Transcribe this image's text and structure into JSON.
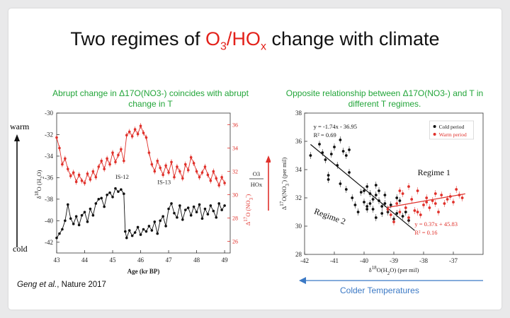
{
  "slide_title": {
    "part1": "Two regimes of ",
    "ratio_num": "O",
    "ratio_num_sub": "3",
    "slash": "/",
    "ratio_den": "HO",
    "ratio_den_sub": "x",
    "part2": " change with climate"
  },
  "left_caption": "Abrupt change in Δ17O(NO3-) coincides with abrupt change in T",
  "right_caption": "Opposite relationship between Δ17O(NO3-) and T in different T regimes.",
  "citation_author": "Geng et al.",
  "citation_rest": ", Nature 2017",
  "colder_label": "Colder Temperatures",
  "chart_data": [
    {
      "type": "line",
      "xlabel": "Age (kr BP)",
      "ylabel_left": "δ18O (H2O)",
      "ylabel_right": "Δ17O (NO3-)",
      "xlim": [
        43,
        49.2
      ],
      "x_ticks": [
        43,
        44,
        45,
        46,
        47,
        48,
        49
      ],
      "ylim_left": [
        -43,
        -30
      ],
      "y_ticks_left": [
        -30,
        -32,
        -34,
        -36,
        -38,
        -40,
        -42
      ],
      "ylim_right": [
        25,
        37
      ],
      "y_ticks_right": [
        26,
        28,
        30,
        32,
        34,
        36
      ],
      "annotations": [
        "IS-12",
        "IS-13"
      ],
      "side_labels": {
        "warm": "warm",
        "cold": "cold",
        "ratio_num": "O3",
        "ratio_den": "HOx"
      },
      "series": [
        {
          "name": "δ18O(H2O)",
          "axis": "left",
          "color": "#111111",
          "x": [
            43.0,
            43.1,
            43.2,
            43.3,
            43.4,
            43.5,
            43.6,
            43.7,
            43.8,
            43.9,
            44.0,
            44.1,
            44.2,
            44.3,
            44.4,
            44.5,
            44.6,
            44.7,
            44.8,
            44.9,
            45.0,
            45.1,
            45.2,
            45.3,
            45.4,
            45.45,
            45.5,
            45.6,
            45.7,
            45.8,
            45.9,
            46.0,
            46.1,
            46.2,
            46.3,
            46.4,
            46.5,
            46.6,
            46.7,
            46.8,
            46.9,
            47.0,
            47.1,
            47.2,
            47.3,
            47.4,
            47.5,
            47.6,
            47.7,
            47.8,
            47.9,
            48.0,
            48.1,
            48.2,
            48.3,
            48.4,
            48.5,
            48.6,
            48.7,
            48.8,
            48.9,
            49.0
          ],
          "y": [
            -41.6,
            -41.2,
            -40.8,
            -40.0,
            -38.5,
            -39.8,
            -40.3,
            -39.6,
            -40.4,
            -39.5,
            -39.2,
            -40.1,
            -38.9,
            -39.5,
            -38.4,
            -38.0,
            -37.9,
            -38.7,
            -37.6,
            -37.4,
            -37.8,
            -37.0,
            -37.3,
            -37.1,
            -37.5,
            -41.0,
            -41.6,
            -40.9,
            -41.4,
            -41.1,
            -40.6,
            -41.3,
            -40.8,
            -41.0,
            -40.5,
            -40.9,
            -40.1,
            -41.2,
            -40.0,
            -39.6,
            -40.5,
            -38.9,
            -38.4,
            -39.3,
            -39.7,
            -38.6,
            -39.9,
            -39.0,
            -38.8,
            -39.5,
            -38.7,
            -39.2,
            -38.5,
            -39.8,
            -38.9,
            -39.4,
            -38.6,
            -39.1,
            -39.7,
            -38.4,
            -39.0,
            -38.6
          ]
        },
        {
          "name": "Δ17O(NO3-)",
          "axis": "right",
          "color": "#e0312b",
          "x": [
            43.0,
            43.1,
            43.2,
            43.3,
            43.4,
            43.5,
            43.6,
            43.7,
            43.8,
            43.9,
            44.0,
            44.1,
            44.2,
            44.3,
            44.4,
            44.5,
            44.6,
            44.7,
            44.8,
            44.9,
            45.0,
            45.1,
            45.2,
            45.3,
            45.4,
            45.5,
            45.6,
            45.7,
            45.8,
            45.9,
            46.0,
            46.1,
            46.2,
            46.3,
            46.4,
            46.5,
            46.6,
            46.7,
            46.8,
            46.9,
            47.0,
            47.1,
            47.2,
            47.3,
            47.4,
            47.5,
            47.6,
            47.7,
            47.8,
            47.9,
            48.0,
            48.1,
            48.2,
            48.3,
            48.4,
            48.5,
            48.6,
            48.7,
            48.8,
            48.9,
            49.0
          ],
          "y": [
            34.9,
            34.0,
            32.6,
            33.1,
            32.2,
            31.6,
            31.9,
            31.1,
            31.7,
            31.2,
            31.0,
            31.8,
            31.3,
            32.0,
            31.5,
            32.4,
            32.9,
            32.2,
            33.1,
            32.6,
            33.6,
            32.8,
            33.4,
            33.9,
            32.9,
            35.1,
            35.4,
            35.0,
            35.6,
            35.2,
            35.9,
            35.3,
            34.9,
            33.6,
            32.6,
            32.0,
            32.9,
            32.3,
            31.7,
            32.5,
            31.9,
            32.8,
            31.5,
            32.4,
            32.0,
            31.4,
            32.6,
            32.1,
            33.2,
            32.7,
            32.0,
            31.5,
            31.9,
            32.4,
            31.7,
            31.2,
            32.0,
            31.4,
            30.8,
            31.5,
            31.0
          ]
        }
      ]
    },
    {
      "type": "scatter",
      "xlabel": "δ18O(H2O) (per mil)",
      "ylabel": "Δ17O(NO3-) (per mil)",
      "xlim": [
        -42,
        -36
      ],
      "x_ticks": [
        -42,
        -41,
        -40,
        -39,
        -38,
        -37
      ],
      "ylim": [
        28,
        38
      ],
      "y_ticks": [
        28,
        30,
        32,
        34,
        36,
        38
      ],
      "legend": [
        "Cold period",
        "Warm period"
      ],
      "regime_labels": [
        "Regime 1",
        "Regime 2"
      ],
      "fits": [
        {
          "series": "Cold period",
          "equation": "y = -1.74x - 36.95",
          "r2": "R² = 0.69",
          "slope": -1.74,
          "intercept": -36.95,
          "x_range": [
            -41.8,
            -38.3
          ]
        },
        {
          "series": "Warm period",
          "equation": "y = 0.37x + 45.83",
          "r2": "R² = 0.16",
          "slope": 0.37,
          "intercept": 45.83,
          "x_range": [
            -39.2,
            -36.6
          ]
        }
      ],
      "series": [
        {
          "name": "Cold period",
          "color": "#111111",
          "x": [
            -41.8,
            -41.5,
            -41.4,
            -41.3,
            -41.2,
            -41.1,
            -41.0,
            -40.9,
            -40.8,
            -40.7,
            -40.6,
            -40.6,
            -40.5,
            -40.4,
            -40.3,
            -40.2,
            -40.1,
            -40.0,
            -40.0,
            -39.9,
            -39.9,
            -39.8,
            -39.8,
            -39.7,
            -39.7,
            -39.6,
            -39.6,
            -39.5,
            -39.5,
            -39.4,
            -39.4,
            -39.3,
            -39.3,
            -39.2,
            -39.1,
            -39.0,
            -38.9,
            -38.8,
            -38.7,
            -38.6,
            -38.5,
            -41.2,
            -40.8,
            -40.5,
            -39.9,
            -39.6,
            -39.2,
            -38.9
          ],
          "y": [
            35.0,
            35.8,
            35.2,
            34.7,
            33.3,
            35.1,
            35.6,
            34.3,
            33.0,
            35.3,
            35.0,
            32.6,
            33.8,
            32.0,
            31.5,
            31.0,
            32.4,
            31.7,
            32.5,
            31.2,
            32.8,
            31.6,
            32.3,
            31.9,
            31.2,
            32.2,
            30.6,
            31.8,
            32.5,
            31.4,
            30.9,
            31.6,
            32.2,
            31.0,
            31.5,
            30.5,
            30.9,
            31.8,
            30.7,
            31.0,
            30.4,
            33.6,
            36.1,
            35.4,
            31.4,
            32.9,
            31.2,
            32.0
          ]
        },
        {
          "name": "Warm period",
          "color": "#e0312b",
          "x": [
            -39.2,
            -39.0,
            -38.9,
            -38.8,
            -38.7,
            -38.6,
            -38.5,
            -38.4,
            -38.3,
            -38.2,
            -38.1,
            -38.0,
            -37.9,
            -37.8,
            -37.7,
            -37.6,
            -37.5,
            -37.4,
            -37.3,
            -37.2,
            -37.1,
            -37.0,
            -36.9,
            -36.8,
            -36.7,
            -39.1,
            -38.8,
            -38.5,
            -38.2,
            -37.9,
            -37.6
          ],
          "y": [
            31.2,
            30.3,
            31.6,
            31.0,
            32.3,
            31.3,
            30.6,
            31.9,
            31.1,
            32.5,
            30.8,
            31.5,
            32.0,
            31.3,
            31.8,
            31.6,
            31.0,
            32.2,
            31.6,
            31.9,
            32.1,
            31.7,
            32.6,
            32.2,
            32.0,
            30.8,
            32.5,
            32.8,
            31.0,
            31.7,
            32.3
          ]
        }
      ]
    }
  ]
}
